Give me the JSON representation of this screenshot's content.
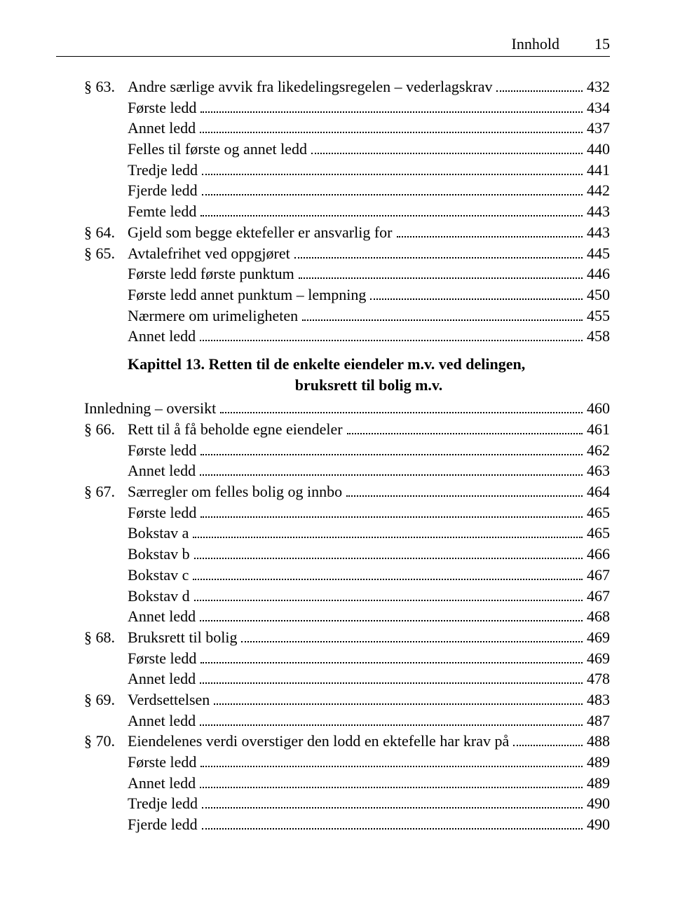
{
  "header": {
    "title": "Innhold",
    "page_number": "15"
  },
  "entries": [
    {
      "type": "section",
      "marker": "§ 63.",
      "label": "Andre særlige avvik fra likedelingsregelen – vederlagskrav",
      "page": "432",
      "indent": 0
    },
    {
      "type": "sub",
      "label": "Første ledd",
      "page": "434",
      "indent": 1
    },
    {
      "type": "sub",
      "label": "Annet ledd",
      "page": "437",
      "indent": 1
    },
    {
      "type": "sub",
      "label": "Felles til første og annet ledd",
      "page": "440",
      "indent": 1
    },
    {
      "type": "sub",
      "label": "Tredje ledd",
      "page": "441",
      "indent": 1
    },
    {
      "type": "sub",
      "label": "Fjerde ledd",
      "page": "442",
      "indent": 1
    },
    {
      "type": "sub",
      "label": "Femte ledd",
      "page": "443",
      "indent": 1
    },
    {
      "type": "section",
      "marker": "§ 64.",
      "label": "Gjeld som begge ektefeller er ansvarlig for",
      "page": "443",
      "indent": 0
    },
    {
      "type": "section",
      "marker": "§ 65.",
      "label": "Avtalefrihet ved oppgjøret",
      "page": "445",
      "indent": 0
    },
    {
      "type": "sub",
      "label": "Første ledd første punktum",
      "page": "446",
      "indent": 1
    },
    {
      "type": "sub",
      "label": "Første ledd annet punktum – lempning",
      "page": "450",
      "indent": 1
    },
    {
      "type": "sub",
      "label": "Nærmere om urimeligheten",
      "page": "455",
      "indent": 1
    },
    {
      "type": "sub",
      "label": "Annet ledd",
      "page": "458",
      "indent": 1
    },
    {
      "type": "chapter",
      "line1": "Kapittel 13. Retten til de enkelte eiendeler m.v. ved delingen,",
      "line2": "bruksrett til bolig m.v."
    },
    {
      "type": "plain",
      "label": "Innledning – oversikt",
      "page": "460",
      "indent": 0
    },
    {
      "type": "section",
      "marker": "§ 66.",
      "label": "Rett til å få beholde egne eiendeler",
      "page": "461",
      "indent": 0
    },
    {
      "type": "sub",
      "label": "Første ledd",
      "page": "462",
      "indent": 1
    },
    {
      "type": "sub",
      "label": "Annet ledd",
      "page": "463",
      "indent": 1
    },
    {
      "type": "section",
      "marker": "§ 67.",
      "label": "Særregler om felles bolig og innbo",
      "page": "464",
      "indent": 0
    },
    {
      "type": "sub",
      "label": "Første ledd",
      "page": "465",
      "indent": 1
    },
    {
      "type": "sub",
      "label": "Bokstav a",
      "page": "465",
      "indent": 1
    },
    {
      "type": "sub",
      "label": "Bokstav b",
      "page": "466",
      "indent": 1
    },
    {
      "type": "sub",
      "label": "Bokstav c",
      "page": "467",
      "indent": 1
    },
    {
      "type": "sub",
      "label": "Bokstav d",
      "page": "467",
      "indent": 1
    },
    {
      "type": "sub",
      "label": "Annet ledd",
      "page": "468",
      "indent": 1
    },
    {
      "type": "section",
      "marker": "§ 68.",
      "label": "Bruksrett til bolig",
      "page": "469",
      "indent": 0
    },
    {
      "type": "sub",
      "label": "Første ledd",
      "page": "469",
      "indent": 1
    },
    {
      "type": "sub",
      "label": "Annet ledd",
      "page": "478",
      "indent": 1
    },
    {
      "type": "section",
      "marker": "§ 69.",
      "label": "Verdsettelsen",
      "page": "483",
      "indent": 0
    },
    {
      "type": "sub",
      "label": "Annet ledd",
      "page": "487",
      "indent": 1
    },
    {
      "type": "section",
      "marker": "§ 70.",
      "label": "Eiendelenes verdi overstiger den lodd en ektefelle har krav på",
      "page": "488",
      "indent": 0
    },
    {
      "type": "sub",
      "label": "Første ledd",
      "page": "489",
      "indent": 1
    },
    {
      "type": "sub",
      "label": "Annet ledd",
      "page": "489",
      "indent": 1
    },
    {
      "type": "sub",
      "label": "Tredje ledd",
      "page": "490",
      "indent": 1
    },
    {
      "type": "sub",
      "label": "Fjerde ledd",
      "page": "490",
      "indent": 1
    }
  ],
  "style": {
    "font_family": "Times New Roman",
    "font_size_pt": 16,
    "text_color": "#000000",
    "background_color": "#ffffff",
    "dot_leader_color": "#000000",
    "rule_color": "#000000"
  }
}
